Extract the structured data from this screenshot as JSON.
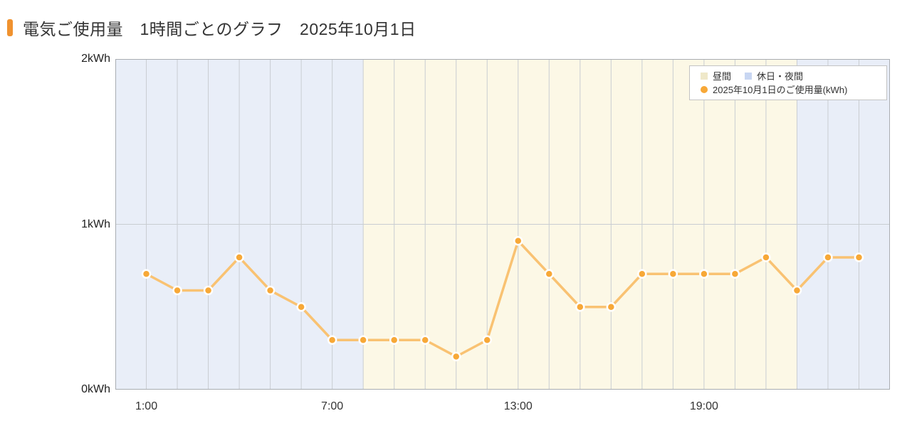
{
  "header": {
    "title": "電気ご使用量　1時間ごとのグラフ　2025年10月1日"
  },
  "legend": {
    "day_label": "昼間",
    "night_label": "休日・夜間",
    "series_label": "2025年10月1日のご使用量(kWh)"
  },
  "chart_data": {
    "type": "line",
    "title": "電気ご使用量　1時間ごとのグラフ　2025年10月1日",
    "unit": "kWh",
    "x_range": [
      0,
      25
    ],
    "ylim": [
      0,
      2
    ],
    "grid": "on",
    "legend_position": "top-right",
    "hours": [
      1,
      2,
      3,
      4,
      5,
      6,
      7,
      8,
      9,
      10,
      11,
      12,
      13,
      14,
      15,
      16,
      17,
      18,
      19,
      20,
      21,
      22,
      23,
      24
    ],
    "values": [
      0.7,
      0.6,
      0.6,
      0.8,
      0.6,
      0.5,
      0.3,
      0.3,
      0.3,
      0.3,
      0.2,
      0.3,
      0.9,
      0.7,
      0.5,
      0.5,
      0.7,
      0.7,
      0.7,
      0.7,
      0.8,
      0.6,
      0.8,
      0.8
    ],
    "series_name": "2025年10月1日のご使用量(kWh)",
    "xticks": [
      {
        "hour": 1,
        "label": "1:00"
      },
      {
        "hour": 7,
        "label": "7:00"
      },
      {
        "hour": 13,
        "label": "13:00"
      },
      {
        "hour": 19,
        "label": "19:00"
      }
    ],
    "yticks": [
      {
        "value": 0,
        "label": "0kWh"
      },
      {
        "value": 1,
        "label": "1kWh"
      },
      {
        "value": 2,
        "label": "2kWh"
      }
    ],
    "bands": [
      {
        "start": 0,
        "end": 8,
        "kind": "night",
        "label": "休日・夜間"
      },
      {
        "start": 8,
        "end": 22,
        "kind": "day",
        "label": "昼間"
      },
      {
        "start": 22,
        "end": 25,
        "kind": "night",
        "label": "休日・夜間"
      }
    ],
    "colors": {
      "accent": "#f0922f",
      "marker": "#f7a837",
      "marker_ring": "#ffffff",
      "line": "#f9c272",
      "band_day": "#fcf8e6",
      "band_night": "#e9eef8",
      "grid": "#c9cdd2",
      "plot_border": "#a9adb2",
      "legend_chip_day": "#efe8c9",
      "legend_chip_night": "#c8d6f2",
      "text": "#333333"
    }
  }
}
